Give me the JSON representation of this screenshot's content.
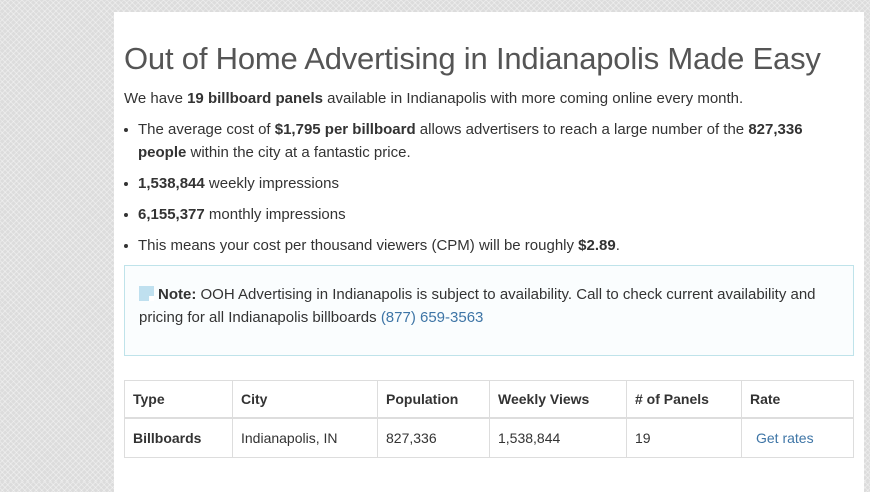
{
  "heading": "Out of Home Advertising in Indianapolis Made Easy",
  "intro": {
    "pre": "We have ",
    "bold": "19 billboard panels",
    "post": " available in Indianapolis with more coming online every month."
  },
  "bullets": {
    "b1": {
      "t1": "The average cost of ",
      "b1": "$1,795 per billboard",
      "t2": " allows advertisers to reach a large number of the ",
      "b2": "827,336 people",
      "t3": " within the city at a fantastic price."
    },
    "b2": {
      "bold": "1,538,844",
      "text": " weekly impressions"
    },
    "b3": {
      "bold": "6,155,377",
      "text": " monthly impressions"
    },
    "b4": {
      "text": "This means your cost per thousand viewers (CPM) will be roughly ",
      "bold": "$2.89",
      "end": "."
    }
  },
  "note": {
    "label": "Note:",
    "text": " OOH Advertising in Indianapolis is subject to availability. Call to check current availability and pricing for all Indianapolis billboards ",
    "phone": "(877) 659-3563"
  },
  "table": {
    "headers": [
      "Type",
      "City",
      "Population",
      "Weekly Views",
      "# of Panels",
      "Rate"
    ],
    "row": [
      "Billboards",
      "Indianapolis, IN",
      "827,336",
      "1,538,844",
      "19",
      "Get rates"
    ]
  }
}
